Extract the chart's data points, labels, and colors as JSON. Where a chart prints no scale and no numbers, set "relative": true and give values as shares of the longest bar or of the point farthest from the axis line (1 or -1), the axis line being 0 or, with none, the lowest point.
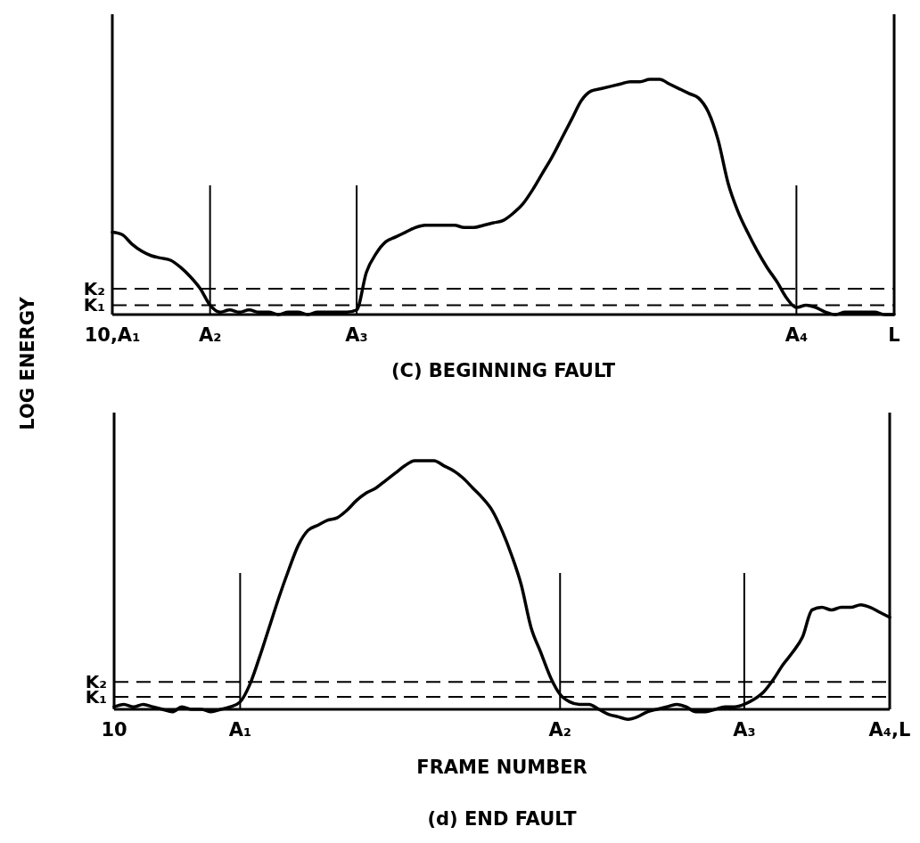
{
  "chart_data": [
    {
      "type": "line",
      "title": "(C) BEGINNING FAULT",
      "ylabel": "LOG ENERGY",
      "relative": true,
      "line_style": "solid",
      "marker": "none",
      "grid": false,
      "categories": [
        "10,A₁",
        null,
        null,
        null,
        null,
        null,
        null,
        null,
        null,
        null,
        "A₂",
        null,
        null,
        null,
        null,
        null,
        null,
        null,
        null,
        null,
        null,
        null,
        null,
        null,
        null,
        "A₃",
        null,
        null,
        null,
        null,
        null,
        null,
        null,
        null,
        null,
        null,
        null,
        null,
        null,
        null,
        null,
        null,
        null,
        null,
        null,
        null,
        null,
        null,
        null,
        null,
        null,
        null,
        null,
        null,
        null,
        null,
        null,
        null,
        null,
        null,
        null,
        null,
        null,
        null,
        null,
        null,
        null,
        null,
        null,
        null,
        "A₄",
        null,
        null,
        null,
        null,
        null,
        null,
        null,
        null,
        null,
        "L"
      ],
      "series": [
        {
          "color": "#000000",
          "values": [
            0.35,
            0.34,
            0.3,
            0.27,
            0.25,
            0.24,
            0.23,
            0.2,
            0.16,
            0.11,
            0.04,
            0.01,
            0.02,
            0.01,
            0.02,
            0.01,
            0.01,
            0,
            0.01,
            0.01,
            0,
            0.01,
            0.01,
            0.01,
            0.01,
            0.02,
            0.18,
            0.26,
            0.31,
            0.33,
            0.35,
            0.37,
            0.38,
            0.38,
            0.38,
            0.38,
            0.37,
            0.37,
            0.38,
            0.39,
            0.4,
            0.43,
            0.47,
            0.53,
            0.6,
            0.67,
            0.75,
            0.83,
            0.91,
            0.95,
            0.96,
            0.97,
            0.98,
            0.99,
            0.99,
            1.0,
            1.0,
            0.98,
            0.96,
            0.94,
            0.92,
            0.86,
            0.74,
            0.56,
            0.44,
            0.35,
            0.27,
            0.2,
            0.14,
            0.07,
            0.03,
            0.04,
            0.03,
            0.01,
            0,
            0.01,
            0.01,
            0.01,
            0.01,
            0,
            0
          ]
        }
      ],
      "ref_lines": [
        {
          "axis": "y",
          "value": 0.04,
          "label": "K₁",
          "line_style": "dashed"
        },
        {
          "axis": "y",
          "value": 0.11,
          "label": "K₂",
          "line_style": "dashed"
        },
        {
          "axis": "x",
          "value": "A₂",
          "line_style": "solid"
        },
        {
          "axis": "x",
          "value": "A₃",
          "line_style": "solid"
        },
        {
          "axis": "x",
          "value": "A₄",
          "line_style": "solid"
        }
      ]
    },
    {
      "type": "line",
      "title": "(d) END FAULT",
      "xlabel": "FRAME NUMBER",
      "relative": true,
      "line_style": "solid",
      "marker": "none",
      "grid": false,
      "categories": [
        "10",
        null,
        null,
        null,
        null,
        null,
        null,
        null,
        null,
        null,
        null,
        null,
        null,
        "A₁",
        null,
        null,
        null,
        null,
        null,
        null,
        null,
        null,
        null,
        null,
        null,
        null,
        null,
        null,
        null,
        null,
        null,
        null,
        null,
        null,
        null,
        null,
        null,
        null,
        null,
        null,
        null,
        null,
        null,
        null,
        null,
        null,
        "A₂",
        null,
        null,
        null,
        null,
        null,
        null,
        null,
        null,
        null,
        null,
        null,
        null,
        null,
        null,
        null,
        null,
        null,
        null,
        "A₃",
        null,
        null,
        null,
        null,
        null,
        null,
        null,
        null,
        null,
        null,
        null,
        null,
        null,
        null,
        "A₄,L"
      ],
      "series": [
        {
          "color": "#000000",
          "values": [
            0.01,
            0.02,
            0.01,
            0.02,
            0.01,
            0,
            -0.01,
            0.01,
            0,
            0,
            -0.01,
            0,
            0.01,
            0.03,
            0.1,
            0.21,
            0.33,
            0.45,
            0.56,
            0.66,
            0.72,
            0.74,
            0.76,
            0.77,
            0.8,
            0.84,
            0.87,
            0.89,
            0.92,
            0.95,
            0.98,
            1.0,
            1.0,
            1.0,
            0.98,
            0.96,
            0.93,
            0.89,
            0.85,
            0.8,
            0.72,
            0.62,
            0.5,
            0.33,
            0.23,
            0.13,
            0.06,
            0.03,
            0.02,
            0.02,
            0,
            -0.02,
            -0.03,
            -0.04,
            -0.03,
            -0.01,
            0,
            0.01,
            0.02,
            0.01,
            -0.01,
            -0.01,
            0,
            0.01,
            0.01,
            0.02,
            0.04,
            0.07,
            0.12,
            0.18,
            0.23,
            0.29,
            0.4,
            0.41,
            0.4,
            0.41,
            0.41,
            0.42,
            0.41,
            0.39,
            0.37
          ]
        }
      ],
      "ref_lines": [
        {
          "axis": "y",
          "value": 0.05,
          "label": "K₁",
          "line_style": "dashed"
        },
        {
          "axis": "y",
          "value": 0.11,
          "label": "K₂",
          "line_style": "dashed"
        },
        {
          "axis": "x",
          "value": "A₁",
          "line_style": "solid"
        },
        {
          "axis": "x",
          "value": "A₂",
          "line_style": "solid"
        },
        {
          "axis": "x",
          "value": "A₃",
          "line_style": "solid"
        }
      ]
    }
  ]
}
